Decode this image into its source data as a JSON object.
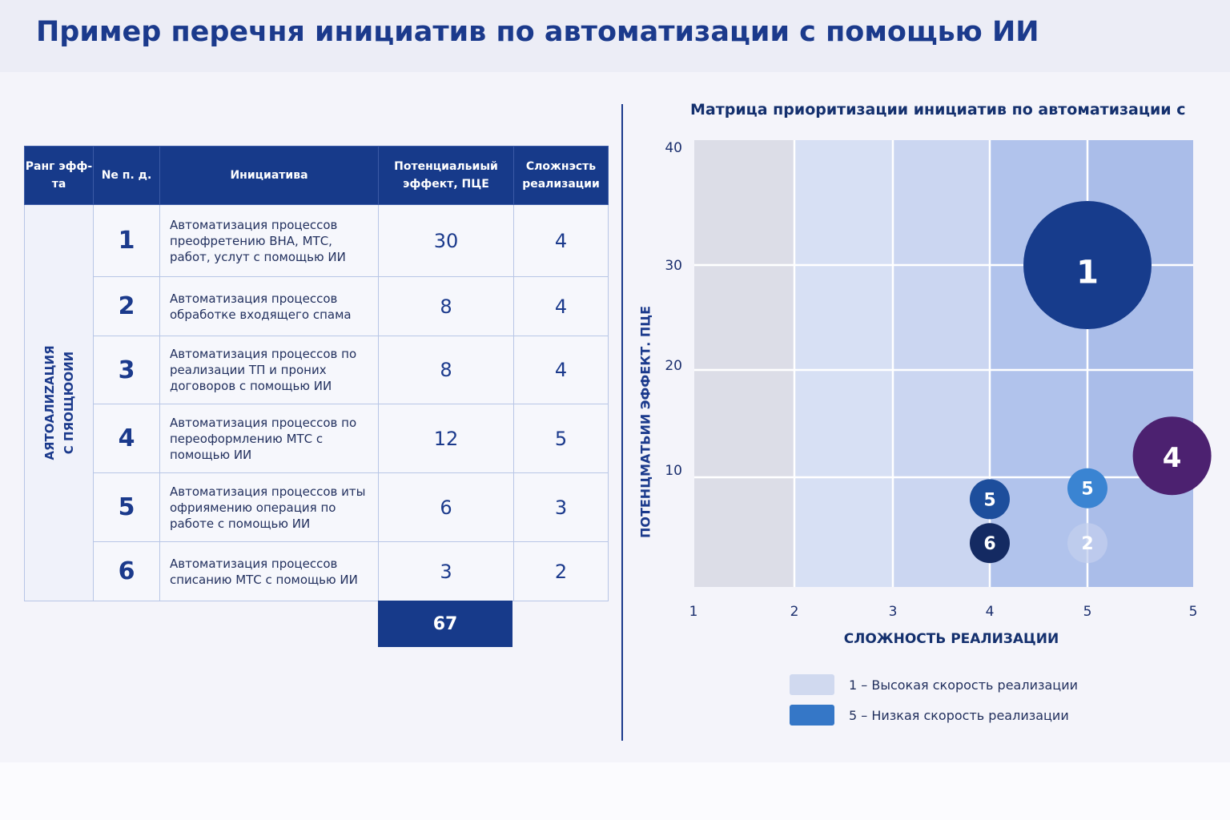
{
  "title": "Пример перечня инициатив по автоматизации с помощью ИИ",
  "table": {
    "headers": [
      "Ранг эфф-та",
      "Nе п. д.",
      "Инициатива",
      "Потенциальиый эффект, ПЦЕ",
      "Сложнэсть реализации"
    ],
    "rank_label_line1": "АЯТОАЛИZАЦИЯ",
    "rank_label_line2": "С ПЯОЩЮОИИ",
    "rows": [
      {
        "no": "1",
        "text": "Автоматизация процессов преофретению ВНА, МТС, работ, услут с помощью ИИ",
        "effect": "30",
        "complexity": "4"
      },
      {
        "no": "2",
        "text": "Автоматизация процессов обработке входящего спама",
        "effect": "8",
        "complexity": "4"
      },
      {
        "no": "3",
        "text": "Автоматизация процессов по реализации ТП и проних договоров с помощью ИИ",
        "effect": "8",
        "complexity": "4"
      },
      {
        "no": "4",
        "text": "Автоматизация процессов по переоформлению МТС с помощью ИИ",
        "effect": "12",
        "complexity": "5"
      },
      {
        "no": "5",
        "text": "Автоматизация процессов иты офриямению операция по работе с помощью ИИ",
        "effect": "6",
        "complexity": "3"
      },
      {
        "no": "6",
        "text": "Автоматизация процессов списанию МТС с помощью ИИ",
        "effect": "3",
        "complexity": "2"
      }
    ],
    "total": "67"
  },
  "chart_data": {
    "type": "scatter",
    "title": "Матрица приоритизации инициатив по автоматизации с",
    "xlabel": "СЛОЖНОСТЬ РЕАЛИЗАЦИИ",
    "ylabel": "ПОТЕНЦМАТЬИИ ЭФФЕКТ. ПЦЕ",
    "x_tick_labels": [
      "1",
      "2",
      "3",
      "4",
      "5",
      "5"
    ],
    "y_ticks": [
      "40",
      "30",
      "20",
      "10"
    ],
    "ylim": [
      0,
      40
    ],
    "column_colors": [
      "#dcdde7",
      "#d7e0f4",
      "#cbd6f1",
      "#b1c3ec",
      "#aabde9"
    ],
    "points": [
      {
        "label": "1",
        "x": 5,
        "y": 30,
        "size": 30,
        "color": "#173c8c"
      },
      {
        "label": "4",
        "x": 5.8,
        "y": 12,
        "size": 12,
        "color": "#4c2170"
      },
      {
        "label": "5",
        "x": 4,
        "y": 8,
        "size": 3,
        "color": "#1d4e9c"
      },
      {
        "label": "5",
        "x": 5,
        "y": 9,
        "size": 3,
        "color": "#3a84d2"
      },
      {
        "label": "6",
        "x": 4,
        "y": 4,
        "size": 3,
        "color": "#142a62"
      },
      {
        "label": "2",
        "x": 5,
        "y": 4,
        "size": 3,
        "color": "#c3cfee"
      }
    ],
    "legend": [
      {
        "label": "1 – Высокая скорость реализации",
        "color": "#d0d9ef"
      },
      {
        "label": "5 – Низкая скорость реализации",
        "color": "#3577c7"
      }
    ]
  }
}
